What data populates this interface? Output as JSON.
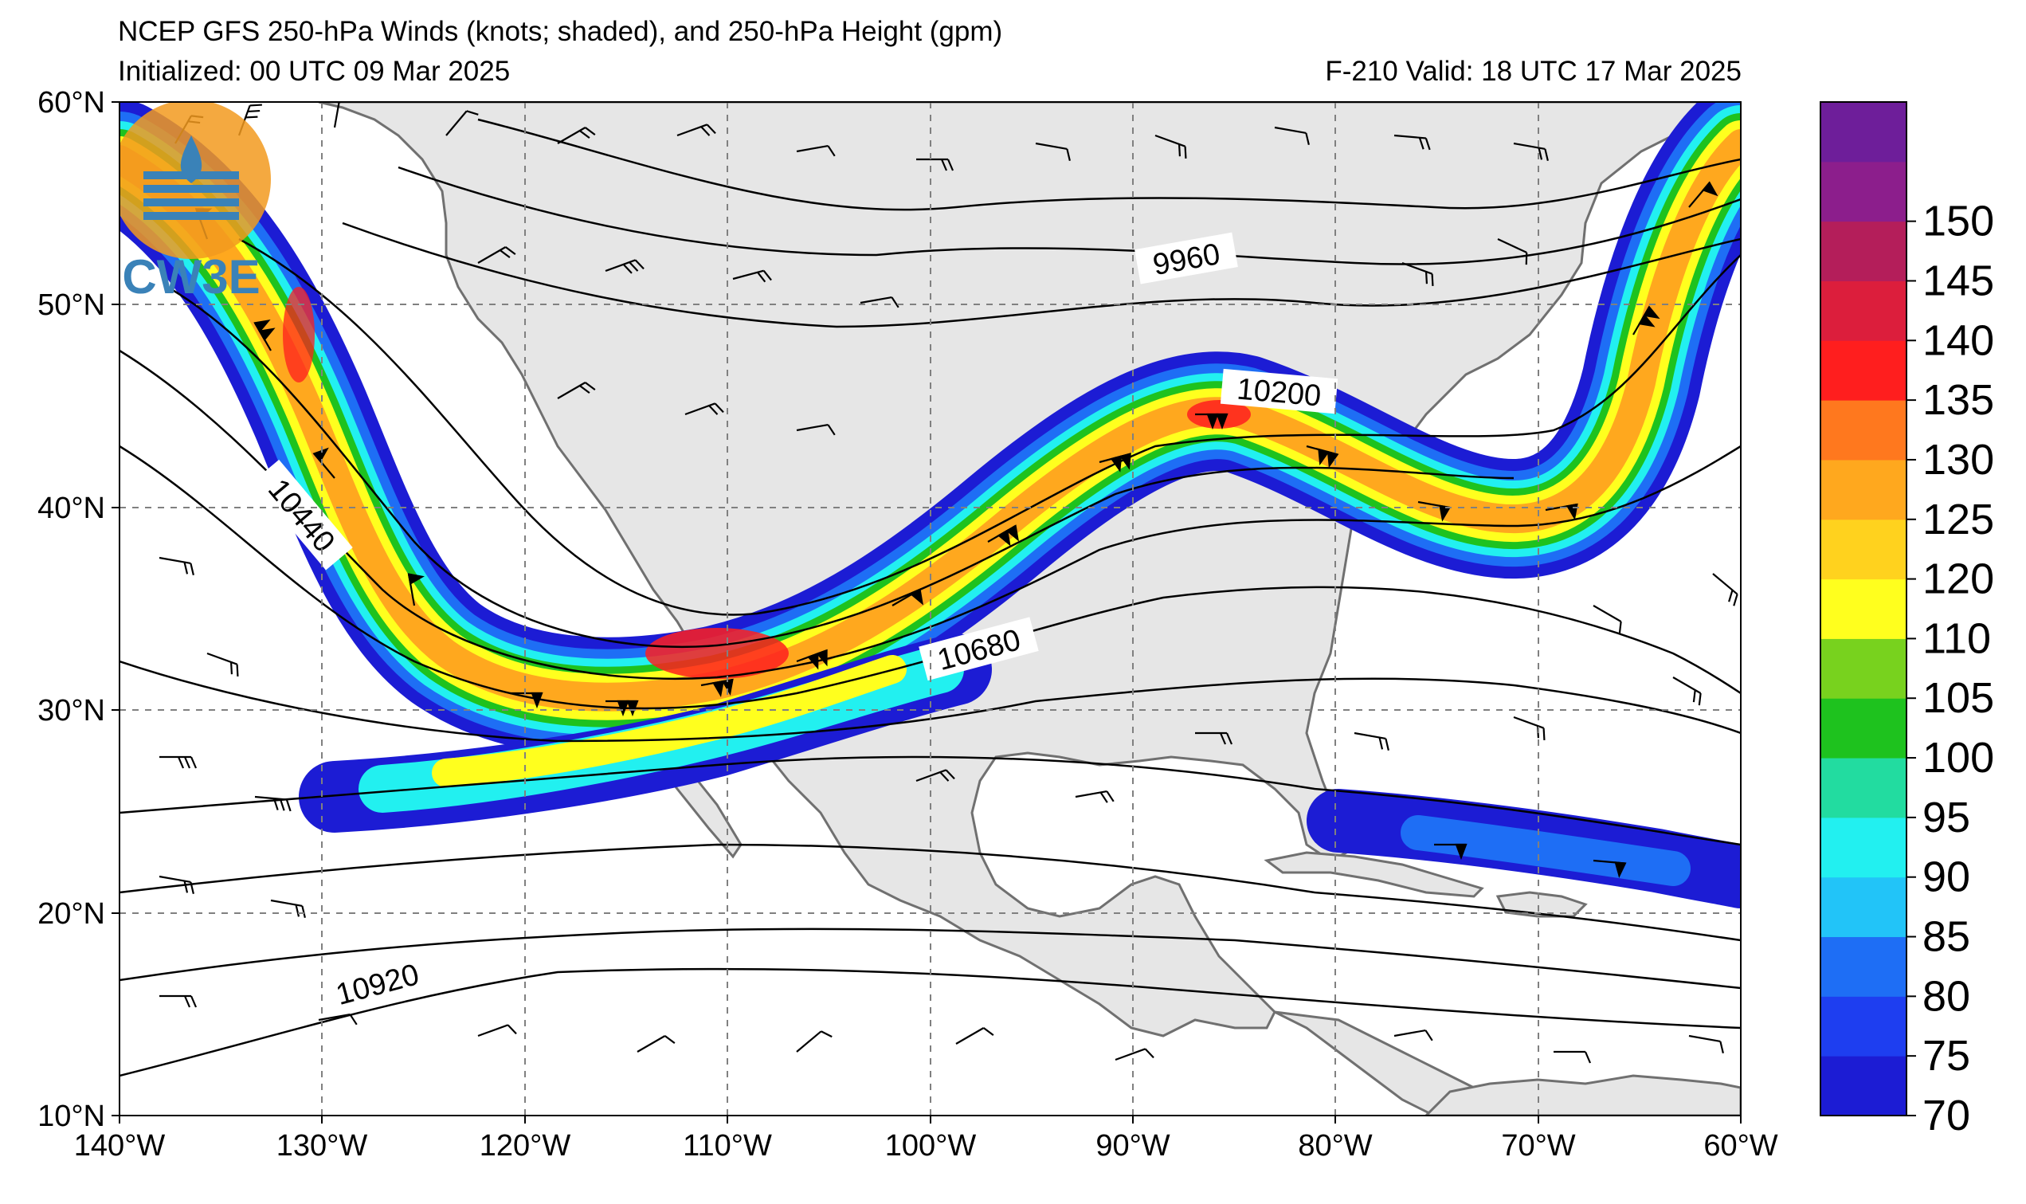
{
  "title": {
    "line1": "NCEP GFS 250-hPa Winds (knots; shaded), and 250-hPa Height (gpm)",
    "line2": "Initialized: 00 UTC 09 Mar 2025",
    "valid": "F-210  Valid: 18 UTC 17 Mar 2025"
  },
  "logo": {
    "text": "CW3E",
    "icon": "cw3e-logo-icon"
  },
  "map": {
    "lon_range": [
      -140,
      -60
    ],
    "lat_range": [
      10,
      60
    ],
    "lon_ticks": [
      "140°W",
      "130°W",
      "120°W",
      "110°W",
      "100°W",
      "90°W",
      "80°W",
      "70°W",
      "60°W"
    ],
    "lat_ticks": [
      "60°N",
      "50°N",
      "40°N",
      "30°N",
      "20°N",
      "10°N"
    ],
    "land_color": "#e6e6e6",
    "ocean_color": "#ffffff",
    "gridlines": "dashed"
  },
  "height_contour_labels": [
    {
      "text": "9960"
    },
    {
      "text": "10200"
    },
    {
      "text": "10440"
    },
    {
      "text": "10680"
    },
    {
      "text": "10920"
    }
  ],
  "colorbar": {
    "units": "knots",
    "levels": [
      "70",
      "75",
      "80",
      "85",
      "90",
      "95",
      "100",
      "105",
      "110",
      "120",
      "125",
      "130",
      "135",
      "140",
      "145",
      "150"
    ],
    "colors": [
      "#1c1cd4",
      "#1e3ef0",
      "#1e6ef5",
      "#22c4f8",
      "#22f0f0",
      "#22dca0",
      "#1ec21e",
      "#78d21e",
      "#ffff1e",
      "#ffd21e",
      "#ffa81e",
      "#ff781e",
      "#ff1e1e",
      "#dc1e3c",
      "#b41e5a",
      "#8c1e8c",
      "#6e1e9a"
    ]
  }
}
